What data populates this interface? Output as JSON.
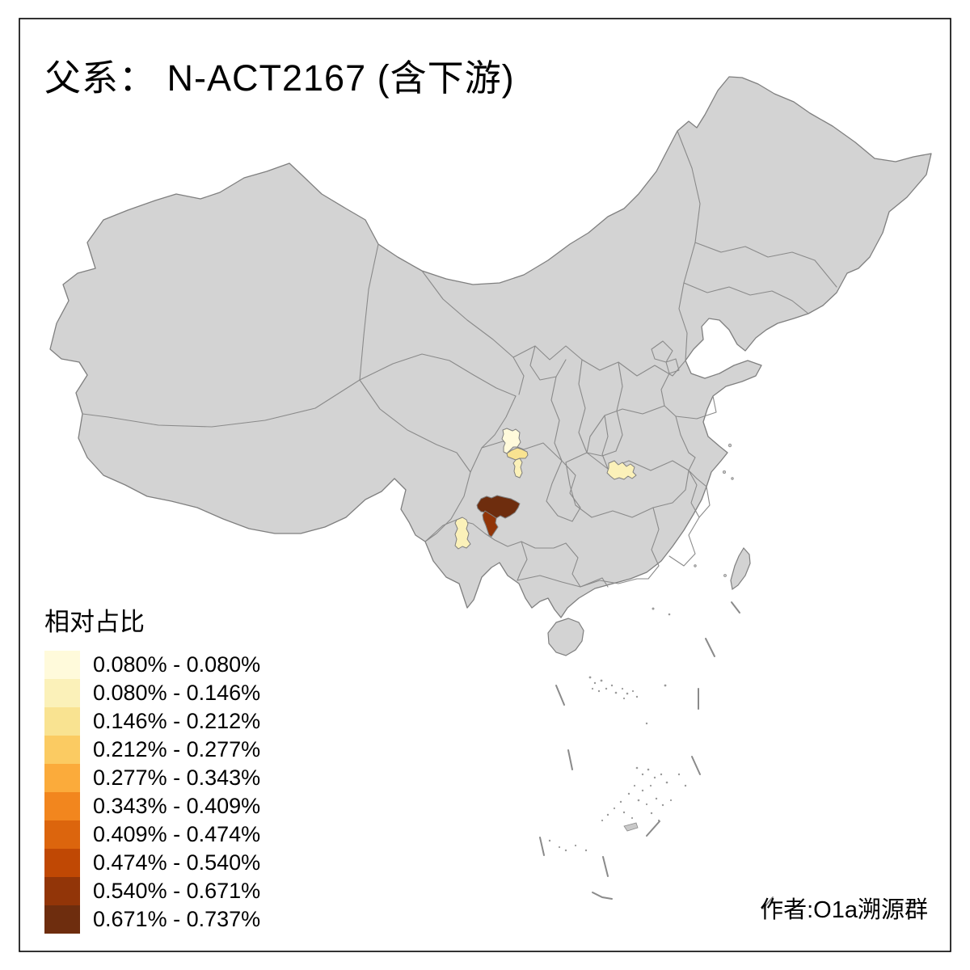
{
  "title": "父系： N-ACT2167 (含下游)",
  "attribution": "作者:O1a溯源群",
  "legend": {
    "title": "相对占比",
    "classes": [
      {
        "label": "0.080% - 0.080%",
        "color": "#FFFADB"
      },
      {
        "label": "0.080% - 0.146%",
        "color": "#FBF1B9"
      },
      {
        "label": "0.146% - 0.212%",
        "color": "#F9E391"
      },
      {
        "label": "0.212% - 0.277%",
        "color": "#FBCB62"
      },
      {
        "label": "0.277% - 0.343%",
        "color": "#FBAB3B"
      },
      {
        "label": "0.343% - 0.409%",
        "color": "#F2861E"
      },
      {
        "label": "0.409% - 0.474%",
        "color": "#DC650D"
      },
      {
        "label": "0.474% - 0.540%",
        "color": "#C04804"
      },
      {
        "label": "0.540% - 0.671%",
        "color": "#923508"
      },
      {
        "label": "0.671% - 0.737%",
        "color": "#6E2D0E"
      }
    ]
  },
  "map": {
    "background": "#ffffff",
    "land_fill": "#d3d3d3",
    "border_color": "#7f7f7f",
    "frame_color": "#000000",
    "regions": [
      {
        "id": "region-1",
        "class_index": 0
      },
      {
        "id": "region-2",
        "class_index": 2
      },
      {
        "id": "region-3",
        "class_index": 1
      },
      {
        "id": "region-4",
        "class_index": 9
      },
      {
        "id": "region-5",
        "class_index": 8
      },
      {
        "id": "region-6",
        "class_index": 1
      },
      {
        "id": "region-7",
        "class_index": 1
      }
    ]
  }
}
